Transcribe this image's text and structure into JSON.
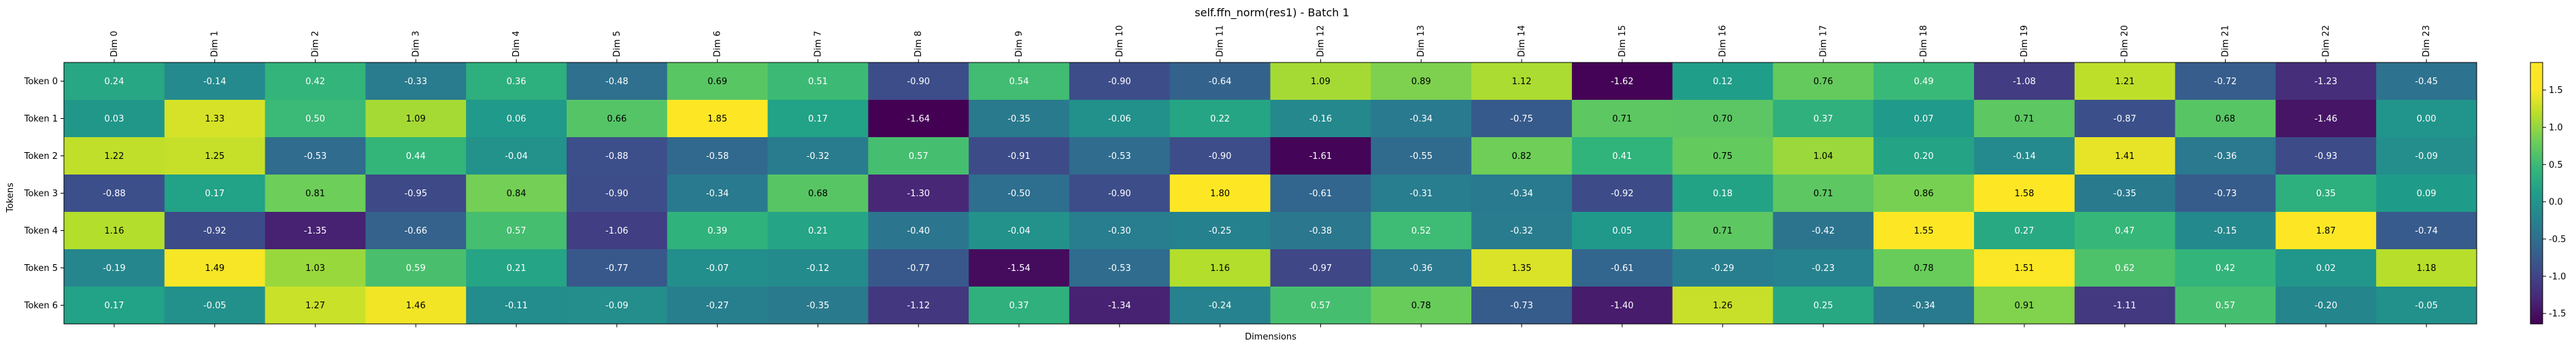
{
  "chart_data": {
    "type": "heatmap",
    "title": "self.ffn_norm(res1) - Batch 1",
    "xlabel": "Dimensions",
    "ylabel": "Tokens",
    "x_categories": [
      "Dim 0",
      "Dim 1",
      "Dim 2",
      "Dim 3",
      "Dim 4",
      "Dim 5",
      "Dim 6",
      "Dim 7",
      "Dim 8",
      "Dim 9",
      "Dim 10",
      "Dim 11",
      "Dim 12",
      "Dim 13",
      "Dim 14",
      "Dim 15",
      "Dim 16",
      "Dim 17",
      "Dim 18",
      "Dim 19",
      "Dim 20",
      "Dim 21",
      "Dim 22",
      "Dim 23"
    ],
    "y_categories": [
      "Token 0",
      "Token 1",
      "Token 2",
      "Token 3",
      "Token 4",
      "Token 5",
      "Token 6"
    ],
    "values": [
      [
        0.24,
        -0.14,
        0.42,
        -0.33,
        0.36,
        -0.48,
        0.69,
        0.51,
        -0.9,
        0.54,
        -0.9,
        -0.64,
        1.09,
        0.89,
        1.12,
        -1.62,
        0.12,
        0.76,
        0.49,
        -1.08,
        1.21,
        -0.72,
        -1.23,
        -0.45
      ],
      [
        0.03,
        1.33,
        0.5,
        1.09,
        0.06,
        0.66,
        1.85,
        0.17,
        -1.64,
        -0.35,
        -0.06,
        0.22,
        -0.16,
        -0.34,
        -0.75,
        0.71,
        0.7,
        0.37,
        0.07,
        0.71,
        -0.87,
        0.68,
        -1.46,
        0.0
      ],
      [
        1.22,
        1.25,
        -0.53,
        0.44,
        -0.04,
        -0.88,
        -0.58,
        -0.32,
        0.57,
        -0.91,
        -0.53,
        -0.9,
        -1.61,
        -0.55,
        0.82,
        0.41,
        0.75,
        1.04,
        0.2,
        -0.14,
        1.41,
        -0.36,
        -0.93,
        -0.09
      ],
      [
        -0.88,
        0.17,
        0.81,
        -0.95,
        0.84,
        -0.9,
        -0.34,
        0.68,
        -1.3,
        -0.5,
        -0.9,
        1.8,
        -0.61,
        -0.31,
        -0.34,
        -0.92,
        0.18,
        0.71,
        0.86,
        1.58,
        -0.35,
        -0.73,
        0.35,
        0.09
      ],
      [
        1.16,
        -0.92,
        -1.35,
        -0.66,
        0.57,
        -1.06,
        0.39,
        0.21,
        -0.4,
        -0.04,
        -0.3,
        -0.25,
        -0.38,
        0.52,
        -0.32,
        0.05,
        0.71,
        -0.42,
        1.55,
        0.27,
        0.47,
        -0.15,
        1.87,
        -0.74
      ],
      [
        -0.19,
        1.49,
        1.03,
        0.59,
        0.21,
        -0.77,
        -0.07,
        -0.12,
        -0.77,
        -1.54,
        -0.53,
        1.16,
        -0.97,
        -0.36,
        1.35,
        -0.61,
        -0.29,
        -0.23,
        0.78,
        1.51,
        0.62,
        0.42,
        0.02,
        1.18
      ],
      [
        0.17,
        -0.05,
        1.27,
        1.46,
        -0.11,
        -0.09,
        -0.27,
        -0.35,
        -1.12,
        0.37,
        -1.34,
        -0.24,
        0.57,
        0.78,
        -0.73,
        -1.4,
        1.26,
        0.25,
        -0.34,
        0.91,
        -1.11,
        0.57,
        -0.2,
        -0.05
      ]
    ],
    "value_format": "2 decimals",
    "colormap": "viridis",
    "vmin": -1.64,
    "vmax": 1.87,
    "colorbar_ticks": [
      "1.5",
      "1.0",
      "0.5",
      "0.0",
      "-0.5",
      "-1.0",
      "-1.5"
    ]
  }
}
